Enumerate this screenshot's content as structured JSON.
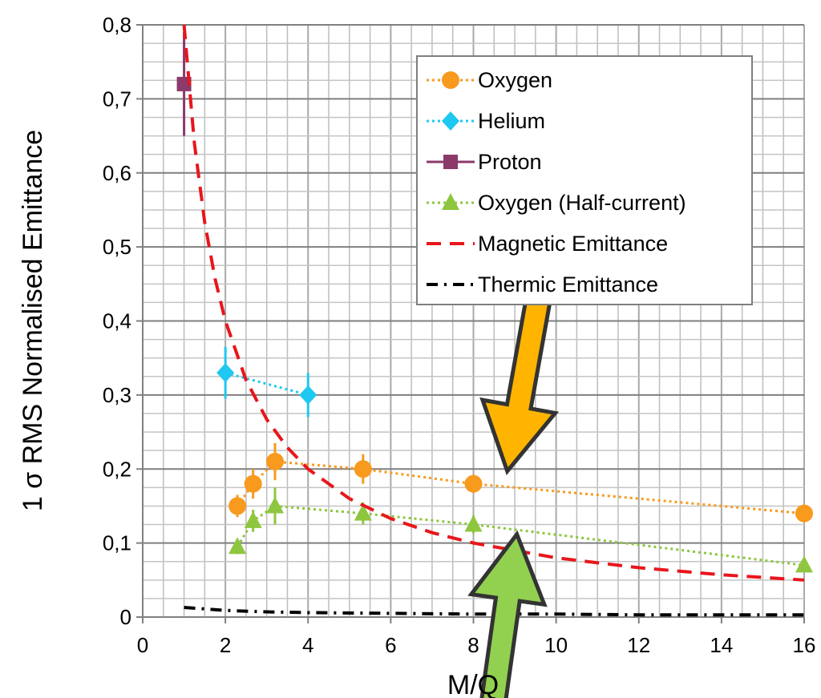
{
  "chart_data": {
    "type": "scatter",
    "xlabel": "M/Q",
    "ylabel": "1 σ RMS Normalised Emittance",
    "xlim": [
      0,
      16
    ],
    "ylim": [
      0,
      0.8
    ],
    "x_tick_labels": [
      "0",
      "2",
      "4",
      "6",
      "8",
      "10",
      "12",
      "14",
      "16"
    ],
    "y_tick_labels": [
      "0",
      "0,1",
      "0,2",
      "0,3",
      "0,4",
      "0,5",
      "0,6",
      "0,7",
      "0,8"
    ],
    "grid": true,
    "legend_position": "top-right",
    "series": [
      {
        "name": "Oxygen",
        "style": "dotted-with-circles",
        "color": "#f79a1e",
        "points": [
          {
            "x": 2.29,
            "y": 0.15,
            "err": 0.015
          },
          {
            "x": 2.67,
            "y": 0.18,
            "err": 0.02
          },
          {
            "x": 3.2,
            "y": 0.21,
            "err": 0.025
          },
          {
            "x": 5.33,
            "y": 0.2,
            "err": 0.02
          },
          {
            "x": 8,
            "y": 0.18,
            "err": 0.012
          },
          {
            "x": 16,
            "y": 0.14,
            "err": 0.01
          }
        ]
      },
      {
        "name": "Helium",
        "style": "dotted-with-diamonds",
        "color": "#1ec8f0",
        "points": [
          {
            "x": 2,
            "y": 0.33,
            "err": 0.035
          },
          {
            "x": 4,
            "y": 0.3,
            "err": 0.03
          }
        ]
      },
      {
        "name": "Proton",
        "style": "solid-with-squares",
        "color": "#8b3a6a",
        "points": [
          {
            "x": 1,
            "y": 0.72,
            "err": 0.07
          }
        ]
      },
      {
        "name": "Oxygen (Half-current)",
        "style": "dotted-with-triangles",
        "color": "#8ec63f",
        "points": [
          {
            "x": 2.29,
            "y": 0.095,
            "err": 0.01
          },
          {
            "x": 2.67,
            "y": 0.13,
            "err": 0.015
          },
          {
            "x": 3.2,
            "y": 0.15,
            "err": 0.025
          },
          {
            "x": 5.33,
            "y": 0.14,
            "err": 0.015
          },
          {
            "x": 8,
            "y": 0.125,
            "err": 0.012
          },
          {
            "x": 16,
            "y": 0.07,
            "err": 0.008
          }
        ]
      },
      {
        "name": "Magnetic Emittance",
        "style": "dashed",
        "color": "#e8161b",
        "x": [
          1,
          1.25,
          1.5,
          1.75,
          2,
          2.5,
          3,
          3.5,
          4,
          5,
          6,
          7,
          8,
          10,
          12,
          14,
          16
        ],
        "y": [
          0.8,
          0.64,
          0.533,
          0.457,
          0.4,
          0.32,
          0.267,
          0.229,
          0.2,
          0.16,
          0.133,
          0.114,
          0.1,
          0.08,
          0.0667,
          0.0571,
          0.05
        ]
      },
      {
        "name": "Thermic Emittance",
        "style": "dash-dot",
        "color": "#000000",
        "x": [
          1,
          2,
          3,
          4,
          6,
          8,
          10,
          12,
          14,
          16
        ],
        "y": [
          0.013,
          0.009,
          0.007,
          0.006,
          0.005,
          0.004,
          0.004,
          0.003,
          0.003,
          0.003
        ]
      }
    ],
    "annotations": [
      {
        "type": "arrow",
        "color": "#ffb400",
        "direction": "down-left",
        "points_to": {
          "x": 9.4,
          "y": 0.17
        }
      },
      {
        "type": "arrow",
        "color": "#92d050",
        "direction": "up-right",
        "points_to": {
          "x": 9.4,
          "y": 0.115
        }
      }
    ]
  }
}
